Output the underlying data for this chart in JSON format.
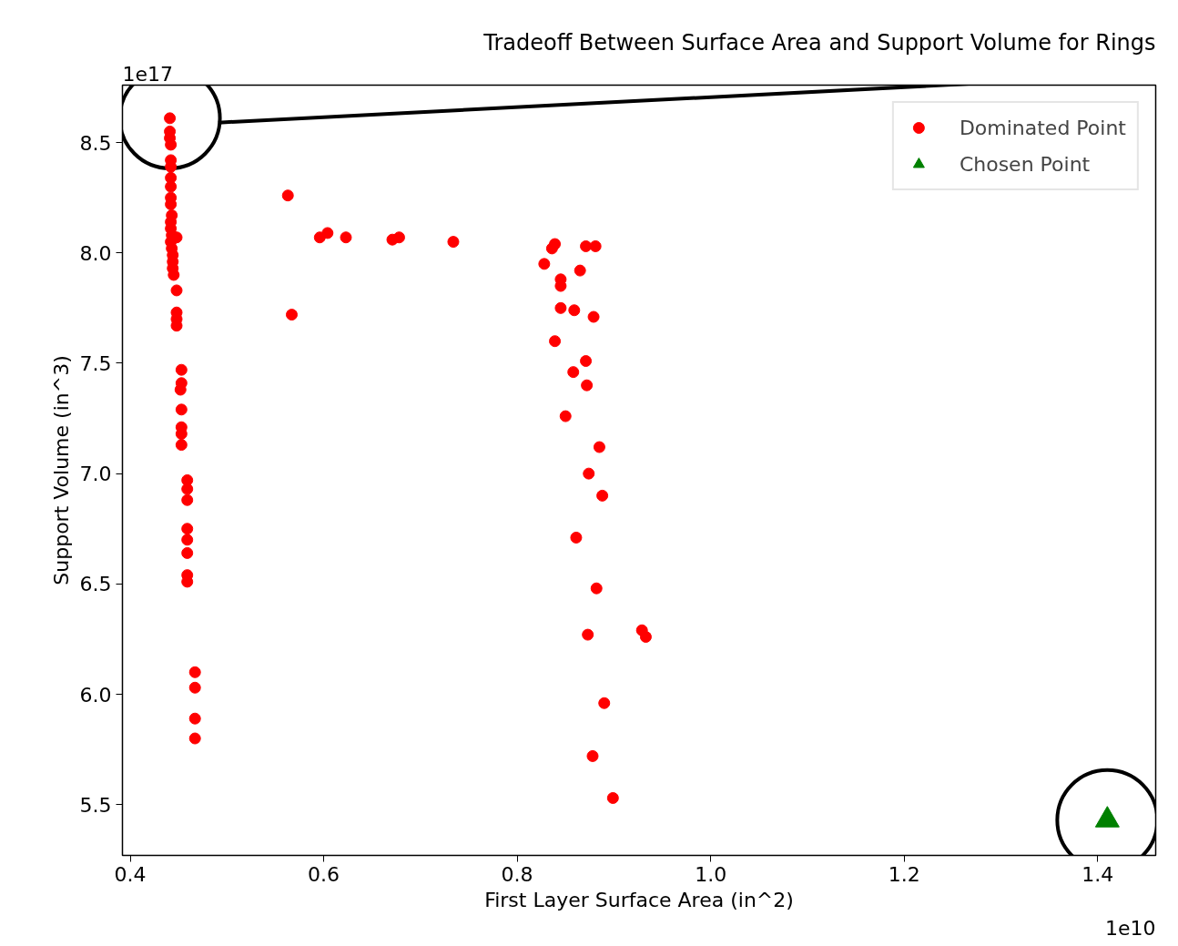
{
  "chart_data": {
    "type": "scatter",
    "title": "Tradeoff Between Surface Area and Support Volume for Rings",
    "xlabel": "First Layer Surface Area (in^2)",
    "ylabel": "Support Volume (in^3)",
    "annotations": [
      "1e17",
      "1e10"
    ],
    "xlim": [
      0.392,
      1.46
    ],
    "xticks": [
      {
        "value": 0.4,
        "label": "0.4"
      },
      {
        "value": 0.6,
        "label": "0.6"
      },
      {
        "value": 0.8,
        "label": "0.8"
      },
      {
        "value": 1,
        "label": "1.0"
      },
      {
        "value": 1.2,
        "label": "1.2"
      },
      {
        "value": 1.4,
        "label": "1.4"
      }
    ],
    "ylim": [
      5.27,
      8.76
    ],
    "yticks": [
      {
        "value": 5.5,
        "label": "5.5"
      },
      {
        "value": 6,
        "label": "6.0"
      },
      {
        "value": 6.5,
        "label": "6.5"
      },
      {
        "value": 7,
        "label": "7.0"
      },
      {
        "value": 7.5,
        "label": "7.5"
      },
      {
        "value": 8,
        "label": "8.0"
      },
      {
        "value": 8.5,
        "label": "8.5"
      }
    ],
    "grid": false,
    "legend": "top right",
    "series": [
      {
        "name": "Dominated Point",
        "color": "#ff0000",
        "marker": "circle",
        "x": [
          0.441,
          0.441,
          0.441,
          0.442,
          0.442,
          0.442,
          0.442,
          0.442,
          0.442,
          0.442,
          0.443,
          0.442,
          0.442,
          0.443,
          0.442,
          0.443,
          0.444,
          0.444,
          0.444,
          0.445,
          0.448,
          0.448,
          0.448,
          0.448,
          0.448,
          0.453,
          0.453,
          0.452,
          0.453,
          0.453,
          0.453,
          0.453,
          0.459,
          0.459,
          0.459,
          0.459,
          0.459,
          0.459,
          0.459,
          0.459,
          0.467,
          0.467,
          0.467,
          0.467,
          0.563,
          0.567,
          0.596,
          0.604,
          0.623,
          0.671,
          0.678,
          0.734,
          0.839,
          0.836,
          0.828,
          0.871,
          0.881,
          0.865,
          0.845,
          0.845,
          0.845,
          0.859,
          0.879,
          0.839,
          0.871,
          0.858,
          0.872,
          0.85,
          0.885,
          0.874,
          0.888,
          0.861,
          0.882,
          0.873,
          0.929,
          0.933,
          0.89,
          0.878,
          0.899
        ],
        "values": [
          8.61,
          8.55,
          8.52,
          8.49,
          8.42,
          8.39,
          8.34,
          8.3,
          8.25,
          8.22,
          8.17,
          8.14,
          8.11,
          8.08,
          8.05,
          8.02,
          7.99,
          7.96,
          7.93,
          7.9,
          8.07,
          7.83,
          7.73,
          7.7,
          7.67,
          7.47,
          7.41,
          7.38,
          7.29,
          7.21,
          7.18,
          7.13,
          6.97,
          6.93,
          6.88,
          6.75,
          6.7,
          6.64,
          6.54,
          6.51,
          6.1,
          6.03,
          5.89,
          5.8,
          8.26,
          7.72,
          8.07,
          8.09,
          8.07,
          8.06,
          8.07,
          8.05,
          8.04,
          8.02,
          7.95,
          8.03,
          8.03,
          7.92,
          7.88,
          7.85,
          7.75,
          7.74,
          7.71,
          7.6,
          7.51,
          7.46,
          7.4,
          7.26,
          7.12,
          7.0,
          6.9,
          6.71,
          6.48,
          6.27,
          6.29,
          6.26,
          5.96,
          5.72,
          5.53
        ]
      },
      {
        "name": "Chosen Point",
        "color": "#008000",
        "marker": "triangle",
        "x": [
          1.41
        ],
        "values": [
          5.43
        ]
      }
    ]
  }
}
